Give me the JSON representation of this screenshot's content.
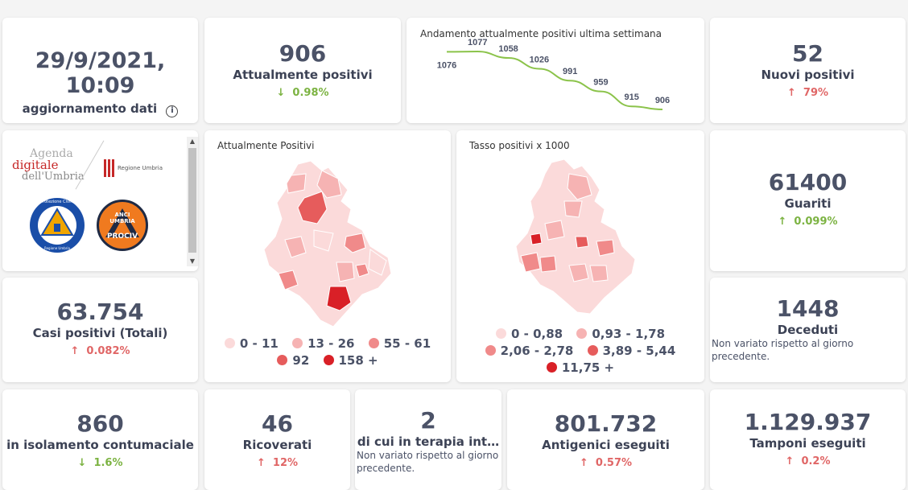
{
  "update": {
    "datetime": "29/9/2021, 10:09",
    "label": "aggiornamento dati",
    "info_icon": "info-icon"
  },
  "attualmente": {
    "value": "906",
    "label": "Attualmente positivi",
    "delta": "0.98%",
    "direction": "down"
  },
  "trend": {
    "title": "Andamento attualmente positivi ultima settimana",
    "values": [
      1076,
      1077,
      1058,
      1026,
      991,
      959,
      915,
      906
    ],
    "labels": [
      "1076",
      "1077",
      "1058",
      "1026",
      "991",
      "959",
      "915",
      "906"
    ],
    "line_color": "#8bc34a"
  },
  "nuovi": {
    "value": "52",
    "label": "Nuovi positivi",
    "delta": "79%",
    "direction": "up"
  },
  "logos": {
    "agenda_line1": "Agenda",
    "agenda_line2": "digitale",
    "agenda_line3": "dell'Umbria",
    "regione": "Regione Umbria",
    "protezione": "Protezione Civile",
    "protezione_sub": "Regione Umbria",
    "anci_line1": "ANCI",
    "anci_line2": "UMBRIA",
    "anci_line3": "PROCIV"
  },
  "map_positivi": {
    "title": "Attualmente Positivi",
    "legend": [
      {
        "label": "0 - 11",
        "color": "#fbdada"
      },
      {
        "label": "13 - 26",
        "color": "#f6b3b3"
      },
      {
        "label": "55 - 61",
        "color": "#f08a8a"
      },
      {
        "label": "92",
        "color": "#e65c5c"
      },
      {
        "label": "158 +",
        "color": "#d92027"
      }
    ]
  },
  "map_tasso": {
    "title": "Tasso positivi x 1000",
    "legend": [
      {
        "label": "0 - 0,88",
        "color": "#fbdada"
      },
      {
        "label": "0,93 - 1,78",
        "color": "#f6b3b3"
      },
      {
        "label": "2,06 - 2,78",
        "color": "#f08a8a"
      },
      {
        "label": "3,89 - 5,44",
        "color": "#e65c5c"
      },
      {
        "label": "11,75 +",
        "color": "#d92027"
      }
    ]
  },
  "guariti": {
    "value": "61400",
    "label": "Guariti",
    "delta": "0.099%",
    "direction": "up-green"
  },
  "casi": {
    "value": "63.754",
    "label": "Casi positivi (Totali)",
    "delta": "0.082%",
    "direction": "up"
  },
  "deceduti": {
    "value": "1448",
    "label": "Deceduti",
    "note": "Non variato rispetto al giorno precedente."
  },
  "isolamento": {
    "value": "860",
    "label": "in isolamento contumaciale",
    "delta": "1.6%",
    "direction": "down"
  },
  "ricoverati": {
    "value": "46",
    "label": "Ricoverati",
    "delta": "12%",
    "direction": "up"
  },
  "terapia": {
    "value": "2",
    "label": "di cui in terapia int…",
    "note": "Non variato rispetto al giorno precedente."
  },
  "antigenici": {
    "value": "801.732",
    "label": "Antigenici eseguiti",
    "delta": "0.57%",
    "direction": "up"
  },
  "tamponi": {
    "value": "1.129.937",
    "label": "Tamponi eseguiti",
    "delta": "0.2%",
    "direction": "up"
  },
  "icons": {
    "up": "↑",
    "down": "↓"
  }
}
